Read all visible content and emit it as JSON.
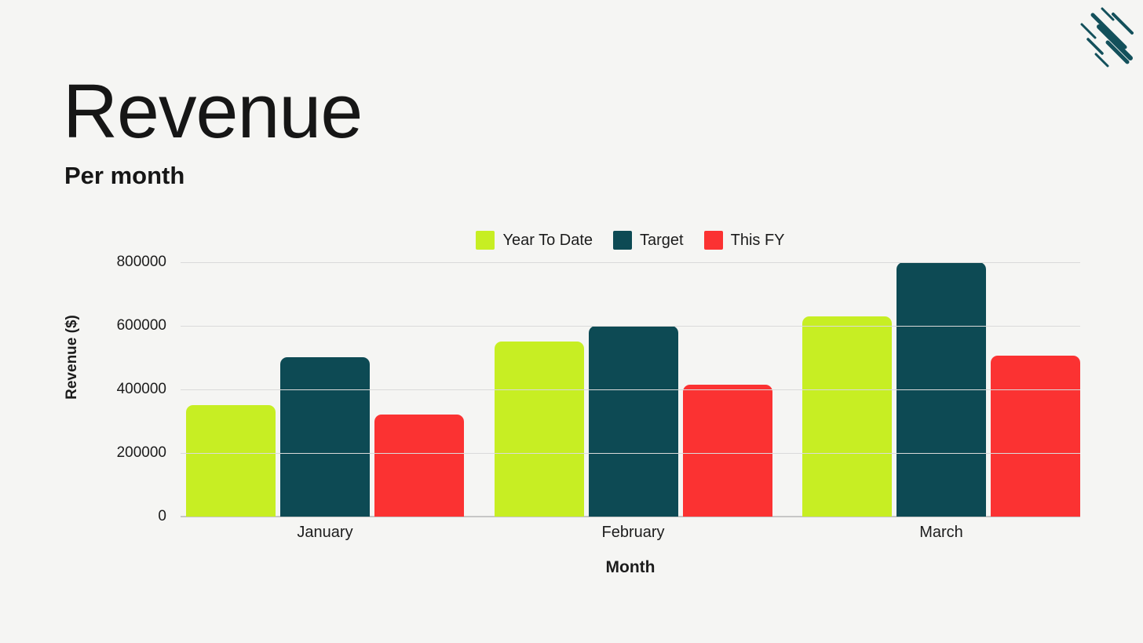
{
  "page": {
    "background_color": "#f5f5f3",
    "title": "Revenue",
    "subtitle": "Per month",
    "logo_icon": "comet-streaks-icon",
    "logo_color": "#13505b"
  },
  "chart_data": {
    "type": "bar",
    "title": "Revenue",
    "subtitle": "Per month",
    "categories": [
      "January",
      "February",
      "March"
    ],
    "series": [
      {
        "name": "Year To Date",
        "color": "#c7ee23",
        "values": [
          350000,
          550000,
          630000
        ]
      },
      {
        "name": "Target",
        "color": "#0d4a54",
        "values": [
          500000,
          600000,
          800000
        ]
      },
      {
        "name": "This FY",
        "color": "#fb3232",
        "values": [
          320000,
          415000,
          505000
        ]
      }
    ],
    "xlabel": "Month",
    "ylabel": "Revenue ($)",
    "ylim": [
      0,
      800000
    ],
    "yticks": [
      0,
      200000,
      400000,
      600000,
      800000
    ],
    "grid": true,
    "legend_position": "top-center",
    "text_color": "#1c1c1c",
    "gridline_color": "#dadada",
    "axisline_color": "#c6c6c6"
  }
}
